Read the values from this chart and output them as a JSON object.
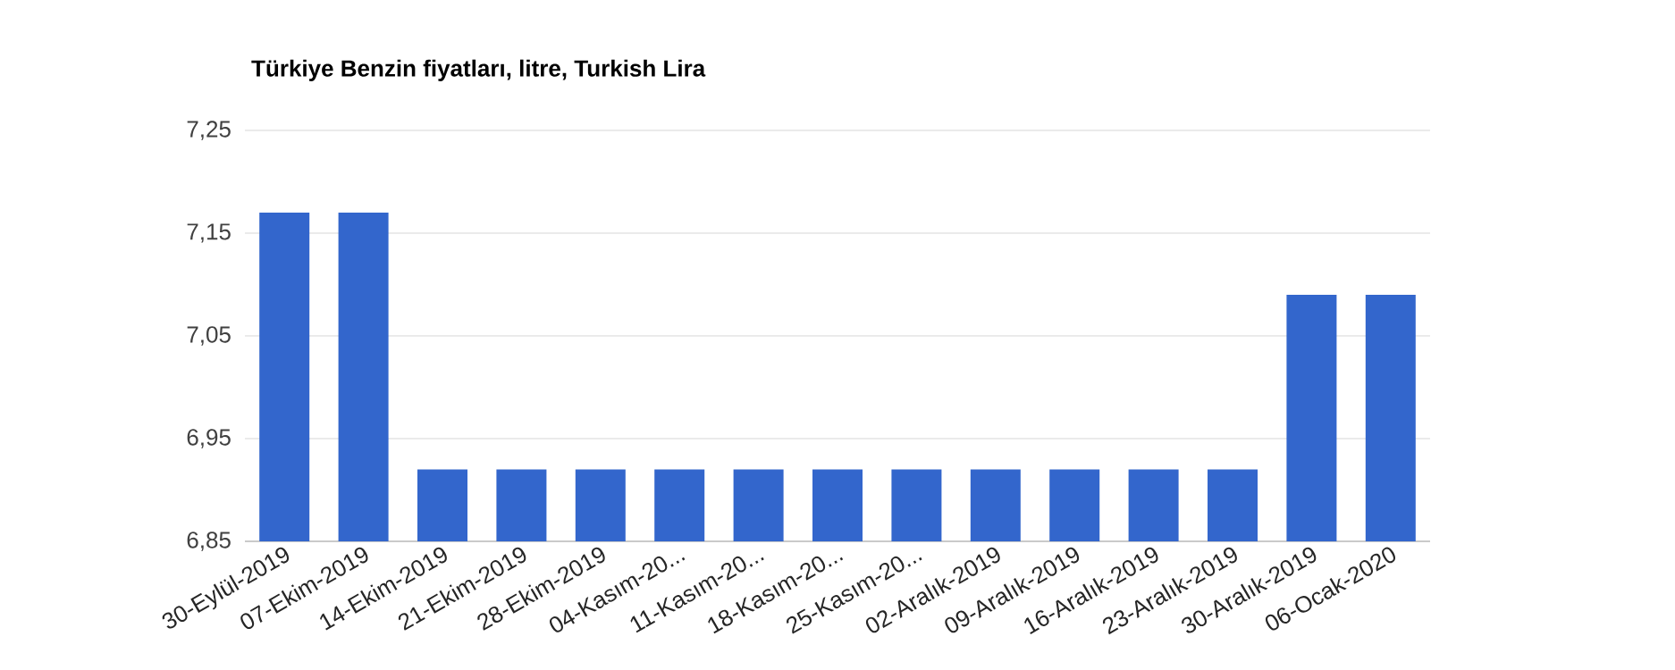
{
  "chart_data": {
    "type": "bar",
    "title": "Türkiye Benzin fiyatları, litre, Turkish Lira",
    "categories": [
      "30-Eylül-2019",
      "07-Ekim-2019",
      "14-Ekim-2019",
      "21-Ekim-2019",
      "28-Ekim-2019",
      "04-Kasım-20...",
      "11-Kasım-20...",
      "18-Kasım-20...",
      "25-Kasım-20...",
      "02-Aralık-2019",
      "09-Aralık-2019",
      "16-Aralık-2019",
      "23-Aralık-2019",
      "30-Aralık-2019",
      "06-Ocak-2020"
    ],
    "values": [
      7.17,
      7.17,
      6.92,
      6.92,
      6.92,
      6.92,
      6.92,
      6.92,
      6.92,
      6.92,
      6.92,
      6.92,
      6.92,
      7.09,
      7.09
    ],
    "color": "#3366cc",
    "ylim": [
      6.85,
      7.25
    ],
    "yticks": [
      {
        "value": 6.85,
        "label": "6,85"
      },
      {
        "value": 6.95,
        "label": "6,95"
      },
      {
        "value": 7.05,
        "label": "7,05"
      },
      {
        "value": 7.15,
        "label": "7,15"
      },
      {
        "value": 7.25,
        "label": "7,25"
      }
    ],
    "grid": "y"
  }
}
